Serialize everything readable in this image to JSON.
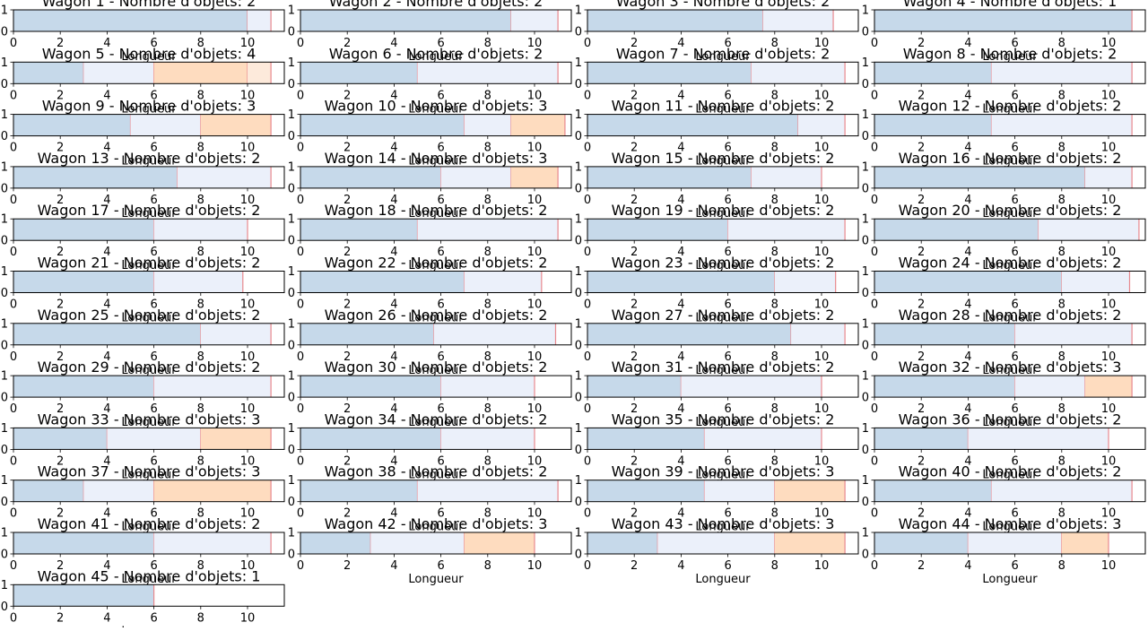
{
  "chart_data": {
    "type": "bar",
    "orientation": "horizontal-stacked",
    "xlabel": "Longueur",
    "xticks": [
      0,
      2,
      4,
      6,
      8,
      10
    ],
    "yticks": [
      0,
      1
    ],
    "xlim": [
      0,
      11.6
    ],
    "ylim": [
      0,
      1
    ],
    "grid": false,
    "colors": [
      "#c6d9ea",
      "#ebf0fa",
      "#fedcbf",
      "#fdeadb"
    ],
    "divider_color": "#e8898e",
    "wagons": [
      {
        "title": "Wagon 1 - Nombre d'objets: 2",
        "segments": [
          10,
          1
        ]
      },
      {
        "title": "Wagon 2 - Nombre d'objets: 2",
        "segments": [
          9,
          2
        ]
      },
      {
        "title": "Wagon 3 - Nombre d'objets: 2",
        "segments": [
          7.5,
          3
        ]
      },
      {
        "title": "Wagon 4 - Nombre d'objets: 1",
        "segments": [
          11
        ]
      },
      {
        "title": "Wagon 5 - Nombre d'objets: 4",
        "segments": [
          3,
          3,
          4,
          1
        ]
      },
      {
        "title": "Wagon 6 - Nombre d'objets: 2",
        "segments": [
          5,
          6
        ]
      },
      {
        "title": "Wagon 7 - Nombre d'objets: 2",
        "segments": [
          7,
          4
        ]
      },
      {
        "title": "Wagon 8 - Nombre d'objets: 2",
        "segments": [
          5,
          6
        ]
      },
      {
        "title": "Wagon 9 - Nombre d'objets: 3",
        "segments": [
          5,
          3,
          3
        ]
      },
      {
        "title": "Wagon 10 - Nombre d'objets: 3",
        "segments": [
          7,
          2,
          2.3
        ]
      },
      {
        "title": "Wagon 11 - Nombre d'objets: 2",
        "segments": [
          9,
          2
        ]
      },
      {
        "title": "Wagon 12 - Nombre d'objets: 2",
        "segments": [
          5,
          6
        ]
      },
      {
        "title": "Wagon 13 - Nombre d'objets: 2",
        "segments": [
          7,
          4
        ]
      },
      {
        "title": "Wagon 14 - Nombre d'objets: 3",
        "segments": [
          6,
          3,
          2
        ]
      },
      {
        "title": "Wagon 15 - Nombre d'objets: 2",
        "segments": [
          7,
          3
        ]
      },
      {
        "title": "Wagon 16 - Nombre d'objets: 2",
        "segments": [
          9,
          2
        ]
      },
      {
        "title": "Wagon 17 - Nombre d'objets: 2",
        "segments": [
          6,
          4
        ]
      },
      {
        "title": "Wagon 18 - Nombre d'objets: 2",
        "segments": [
          5,
          6
        ]
      },
      {
        "title": "Wagon 19 - Nombre d'objets: 2",
        "segments": [
          6,
          5
        ]
      },
      {
        "title": "Wagon 20 - Nombre d'objets: 2",
        "segments": [
          7,
          4.3
        ]
      },
      {
        "title": "Wagon 21 - Nombre d'objets: 2",
        "segments": [
          6,
          3.8
        ]
      },
      {
        "title": "Wagon 22 - Nombre d'objets: 2",
        "segments": [
          7,
          3.3
        ]
      },
      {
        "title": "Wagon 23 - Nombre d'objets: 2",
        "segments": [
          8,
          2.6
        ]
      },
      {
        "title": "Wagon 24 - Nombre d'objets: 2",
        "segments": [
          8,
          2.9
        ]
      },
      {
        "title": "Wagon 25 - Nombre d'objets: 2",
        "segments": [
          8,
          3
        ]
      },
      {
        "title": "Wagon 26 - Nombre d'objets: 2",
        "segments": [
          5.7,
          5.2
        ]
      },
      {
        "title": "Wagon 27 - Nombre d'objets: 2",
        "segments": [
          8.7,
          2.3
        ]
      },
      {
        "title": "Wagon 28 - Nombre d'objets: 2",
        "segments": [
          6,
          5
        ]
      },
      {
        "title": "Wagon 29 - Nombre d'objets: 2",
        "segments": [
          6,
          5
        ]
      },
      {
        "title": "Wagon 30 - Nombre d'objets: 2",
        "segments": [
          6,
          4
        ]
      },
      {
        "title": "Wagon 31 - Nombre d'objets: 2",
        "segments": [
          4,
          6
        ]
      },
      {
        "title": "Wagon 32 - Nombre d'objets: 3",
        "segments": [
          6,
          3,
          2
        ]
      },
      {
        "title": "Wagon 33 - Nombre d'objets: 3",
        "segments": [
          4,
          4,
          3
        ]
      },
      {
        "title": "Wagon 34 - Nombre d'objets: 2",
        "segments": [
          6,
          4
        ]
      },
      {
        "title": "Wagon 35 - Nombre d'objets: 2",
        "segments": [
          5,
          5
        ]
      },
      {
        "title": "Wagon 36 - Nombre d'objets: 2",
        "segments": [
          4,
          6
        ]
      },
      {
        "title": "Wagon 37 - Nombre d'objets: 3",
        "segments": [
          3,
          3,
          5
        ]
      },
      {
        "title": "Wagon 38 - Nombre d'objets: 2",
        "segments": [
          5,
          6
        ]
      },
      {
        "title": "Wagon 39 - Nombre d'objets: 3",
        "segments": [
          5,
          3,
          3
        ]
      },
      {
        "title": "Wagon 40 - Nombre d'objets: 2",
        "segments": [
          5,
          6
        ]
      },
      {
        "title": "Wagon 41 - Nombre d'objets: 2",
        "segments": [
          6,
          5
        ]
      },
      {
        "title": "Wagon 42 - Nombre d'objets: 3",
        "segments": [
          3,
          4,
          3
        ]
      },
      {
        "title": "Wagon 43 - Nombre d'objets: 3",
        "segments": [
          3,
          5,
          3
        ]
      },
      {
        "title": "Wagon 44 - Nombre d'objets: 3",
        "segments": [
          4,
          4,
          2
        ]
      },
      {
        "title": "Wagon 45 - Nombre d'objets: 1",
        "segments": [
          6
        ]
      }
    ]
  }
}
